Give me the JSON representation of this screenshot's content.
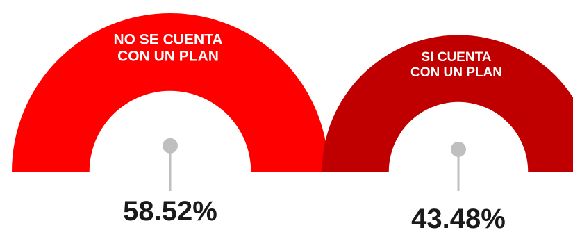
{
  "chart_data": {
    "type": "pie",
    "title": "",
    "categories": [
      "NO SE CUENTA CON UN PLAN",
      "SI CUENTA CON UN PLAN"
    ],
    "values": [
      58.52,
      43.48
    ],
    "value_labels": [
      "58.52%",
      "43.48%"
    ],
    "arc_labels": [
      [
        "NO SE CUENTA",
        "CON UN PLAN"
      ],
      [
        "SI CUENTA",
        "CON UN PLAN"
      ]
    ],
    "colors": [
      "#ff0000",
      "#c00000"
    ],
    "marker_color": "#bfbfbf",
    "value_text_color": "#1a1a1a",
    "legend": "none",
    "grid": false
  }
}
